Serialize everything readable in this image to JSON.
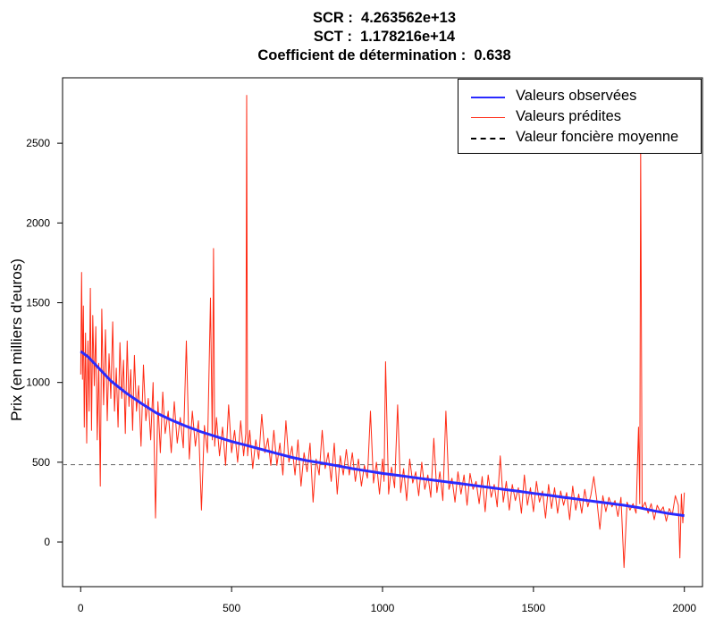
{
  "title_lines": [
    "SCR :  4.263562e+13",
    "SCT :  1.178216e+14",
    "Coefficient de détermination :  0.638"
  ],
  "chart_data": {
    "type": "line",
    "ylabel": "Prix (en milliers d'euros)",
    "xlabel": "",
    "xlim": [
      -60,
      2060
    ],
    "ylim": [
      -280,
      2910
    ],
    "x_ticks": [
      0,
      500,
      1000,
      1500,
      2000
    ],
    "y_ticks": [
      0,
      500,
      1000,
      1500,
      2000,
      2500
    ],
    "grid": false,
    "legend_position": "top-right",
    "mean_line": {
      "name": "Valeur foncière moyenne",
      "value": 485,
      "style": "dashed",
      "color": "#777777"
    },
    "series": [
      {
        "name": "Valeurs observées",
        "color": "#2a2aff",
        "style": "line",
        "x": [
          0,
          25,
          50,
          75,
          100,
          150,
          200,
          250,
          300,
          350,
          400,
          450,
          500,
          550,
          600,
          650,
          700,
          750,
          800,
          850,
          900,
          950,
          1000,
          1050,
          1100,
          1150,
          1200,
          1250,
          1300,
          1350,
          1400,
          1450,
          1500,
          1550,
          1600,
          1650,
          1700,
          1750,
          1800,
          1850,
          1900,
          1950,
          2000
        ],
        "y": [
          1195,
          1160,
          1110,
          1060,
          1010,
          935,
          870,
          810,
          765,
          725,
          690,
          660,
          630,
          605,
          580,
          555,
          530,
          510,
          495,
          478,
          460,
          445,
          430,
          418,
          405,
          392,
          380,
          368,
          355,
          343,
          330,
          318,
          305,
          293,
          280,
          268,
          255,
          243,
          230,
          215,
          195,
          178,
          165
        ]
      },
      {
        "name": "Valeurs prédites",
        "color": "#ff2a14",
        "style": "line",
        "x": [
          0,
          3,
          6,
          9,
          12,
          16,
          20,
          24,
          28,
          32,
          36,
          40,
          45,
          50,
          55,
          60,
          65,
          70,
          76,
          82,
          88,
          94,
          100,
          106,
          112,
          118,
          124,
          130,
          136,
          142,
          148,
          154,
          160,
          166,
          172,
          178,
          185,
          192,
          200,
          208,
          216,
          224,
          232,
          240,
          248,
          256,
          264,
          272,
          280,
          290,
          300,
          310,
          320,
          330,
          340,
          350,
          360,
          370,
          380,
          390,
          400,
          410,
          420,
          430,
          436,
          440,
          444,
          450,
          460,
          470,
          480,
          490,
          500,
          510,
          520,
          530,
          540,
          547,
          550,
          553,
          560,
          570,
          580,
          590,
          600,
          610,
          620,
          630,
          640,
          650,
          660,
          670,
          680,
          690,
          700,
          710,
          720,
          730,
          740,
          750,
          760,
          770,
          780,
          790,
          800,
          810,
          820,
          830,
          840,
          850,
          860,
          870,
          880,
          890,
          900,
          910,
          920,
          930,
          940,
          950,
          960,
          970,
          980,
          990,
          1000,
          1005,
          1010,
          1020,
          1030,
          1040,
          1050,
          1060,
          1070,
          1080,
          1090,
          1100,
          1110,
          1120,
          1130,
          1140,
          1150,
          1160,
          1170,
          1180,
          1190,
          1200,
          1210,
          1220,
          1230,
          1240,
          1250,
          1260,
          1270,
          1280,
          1290,
          1300,
          1310,
          1320,
          1330,
          1340,
          1350,
          1360,
          1370,
          1380,
          1390,
          1400,
          1410,
          1420,
          1430,
          1440,
          1450,
          1460,
          1470,
          1480,
          1490,
          1500,
          1510,
          1520,
          1530,
          1540,
          1550,
          1560,
          1570,
          1580,
          1590,
          1600,
          1610,
          1620,
          1630,
          1640,
          1650,
          1660,
          1670,
          1680,
          1690,
          1700,
          1710,
          1720,
          1730,
          1740,
          1750,
          1760,
          1770,
          1780,
          1790,
          1800,
          1810,
          1820,
          1830,
          1840,
          1848,
          1852,
          1855,
          1860,
          1870,
          1880,
          1890,
          1900,
          1910,
          1920,
          1930,
          1940,
          1950,
          1960,
          1970,
          1980,
          1985,
          1990,
          1995,
          2000
        ],
        "y": [
          1050,
          1690,
          1020,
          1480,
          720,
          1310,
          620,
          1260,
          820,
          1590,
          700,
          1420,
          980,
          1350,
          640,
          1120,
          350,
          1460,
          860,
          1330,
          760,
          1180,
          900,
          1380,
          820,
          1090,
          720,
          1250,
          900,
          1140,
          680,
          1260,
          850,
          1080,
          700,
          1170,
          820,
          980,
          600,
          1110,
          760,
          900,
          640,
          1000,
          150,
          880,
          560,
          940,
          680,
          820,
          560,
          880,
          620,
          780,
          590,
          1260,
          520,
          820,
          600,
          760,
          200,
          730,
          560,
          1530,
          640,
          1840,
          600,
          780,
          540,
          720,
          480,
          860,
          560,
          700,
          500,
          760,
          540,
          680,
          2800,
          540,
          700,
          460,
          640,
          520,
          800,
          560,
          650,
          480,
          700,
          480,
          620,
          420,
          760,
          500,
          600,
          420,
          640,
          350,
          560,
          440,
          620,
          250,
          520,
          420,
          700,
          460,
          560,
          380,
          620,
          300,
          540,
          420,
          580,
          420,
          560,
          380,
          520,
          350,
          480,
          400,
          820,
          370,
          500,
          300,
          520,
          380,
          1130,
          300,
          470,
          340,
          860,
          310,
          460,
          260,
          520,
          370,
          440,
          290,
          500,
          330,
          420,
          280,
          650,
          310,
          440,
          260,
          820,
          330,
          400,
          250,
          440,
          300,
          420,
          230,
          430,
          330,
          380,
          240,
          410,
          190,
          420,
          280,
          360,
          220,
          540,
          250,
          380,
          200,
          360,
          260,
          340,
          180,
          420,
          230,
          340,
          190,
          380,
          250,
          320,
          150,
          360,
          210,
          340,
          180,
          320,
          230,
          310,
          140,
          350,
          200,
          300,
          180,
          330,
          220,
          290,
          410,
          260,
          80,
          290,
          190,
          280,
          220,
          260,
          160,
          280,
          -160,
          250,
          200,
          240,
          180,
          720,
          240,
          2480,
          210,
          250,
          180,
          240,
          140,
          230,
          190,
          220,
          130,
          210,
          170,
          290,
          230,
          -100,
          300,
          120,
          310
        ]
      }
    ]
  },
  "legend": {
    "items": [
      {
        "label": "Valeurs observées",
        "color": "#2a2aff",
        "style": "solid"
      },
      {
        "label": "Valeurs prédites",
        "color": "#ff2a14",
        "style": "solid"
      },
      {
        "label": "Valeur foncière moyenne",
        "color": "#000000",
        "style": "dashed"
      }
    ]
  }
}
